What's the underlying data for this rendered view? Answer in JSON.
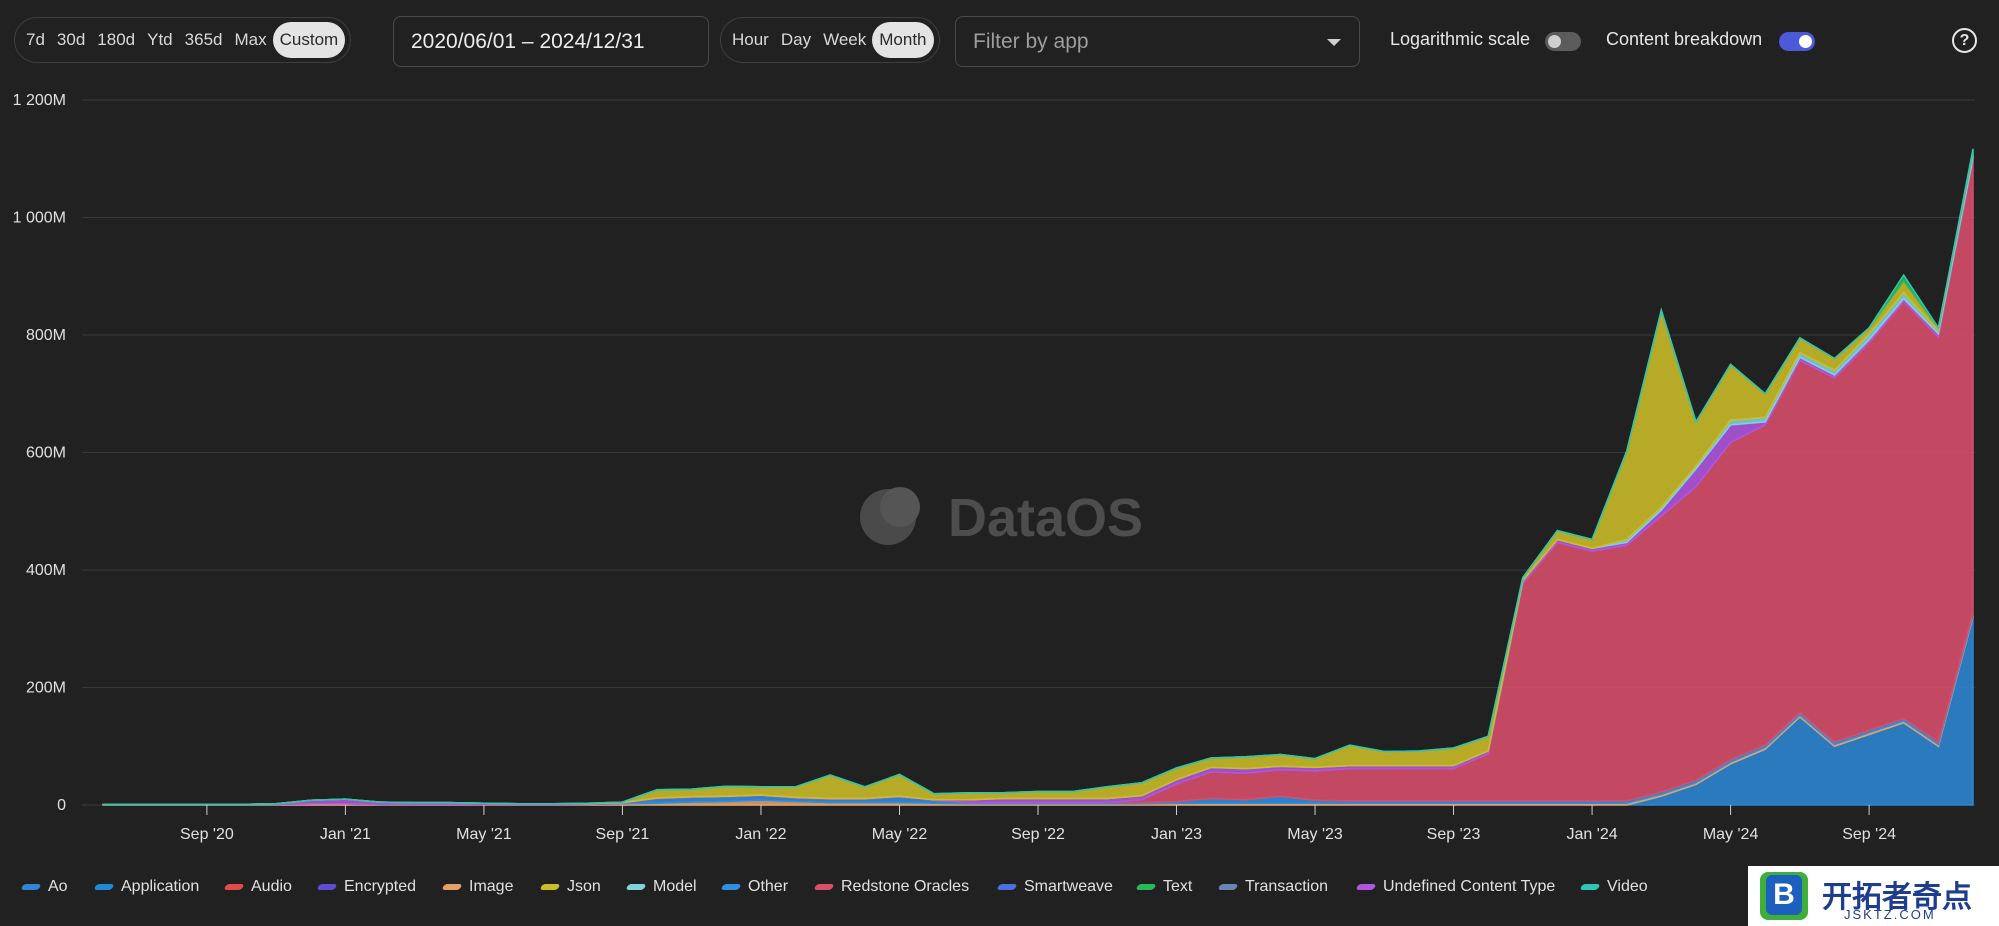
{
  "range_buttons": [
    "7d",
    "30d",
    "180d",
    "Ytd",
    "365d",
    "Max",
    "Custom"
  ],
  "range_active": "Custom",
  "date_range": "2020/06/01 – 2024/12/31",
  "interval_buttons": [
    "Hour",
    "Day",
    "Week",
    "Month"
  ],
  "interval_active": "Month",
  "filter": {
    "placeholder": "Filter by app"
  },
  "toggles": {
    "log_scale": {
      "label": "Logarithmic scale",
      "on": false
    },
    "content_breakdown": {
      "label": "Content breakdown",
      "on": true
    }
  },
  "help_icon": "question-circle-icon",
  "watermark": "DataOS",
  "badge": {
    "title": "开拓者奇点",
    "subtitle": "JSKTZ.COM"
  },
  "colors": {
    "background": "#212121",
    "grid": "#3a3a3a",
    "toggle_on": "#4c59d8"
  },
  "chart_data": {
    "type": "area",
    "stacked": true,
    "ylim": [
      0,
      1200
    ],
    "y_unit": "M",
    "yticks": [
      "0",
      "200M",
      "400M",
      "600M",
      "800M",
      "1 000M",
      "1 200M"
    ],
    "x_tick_labels": [
      "Sep '20",
      "Jan '21",
      "May '21",
      "Sep '21",
      "Jan '22",
      "May '22",
      "Sep '22",
      "Jan '23",
      "May '23",
      "Sep '23",
      "Jan '24",
      "May '24",
      "Sep '24"
    ],
    "x": [
      "2020-06",
      "2020-07",
      "2020-08",
      "2020-09",
      "2020-10",
      "2020-11",
      "2020-12",
      "2021-01",
      "2021-02",
      "2021-03",
      "2021-04",
      "2021-05",
      "2021-06",
      "2021-07",
      "2021-08",
      "2021-09",
      "2021-10",
      "2021-11",
      "2021-12",
      "2022-01",
      "2022-02",
      "2022-03",
      "2022-04",
      "2022-05",
      "2022-06",
      "2022-07",
      "2022-08",
      "2022-09",
      "2022-10",
      "2022-11",
      "2022-12",
      "2023-01",
      "2023-02",
      "2023-03",
      "2023-04",
      "2023-05",
      "2023-06",
      "2023-07",
      "2023-08",
      "2023-09",
      "2023-10",
      "2023-11",
      "2023-12",
      "2024-01",
      "2024-02",
      "2024-03",
      "2024-04",
      "2024-05",
      "2024-06",
      "2024-07",
      "2024-08",
      "2024-09",
      "2024-10",
      "2024-11",
      "2024-12"
    ],
    "series": [
      {
        "name": "Ao",
        "color": "#2e86d4",
        "values": [
          0,
          0,
          0,
          0,
          0,
          0,
          0,
          0,
          0,
          0,
          0,
          0,
          0,
          0,
          0,
          0,
          0,
          0,
          0,
          0,
          0,
          0,
          0,
          0,
          0,
          0,
          0,
          0,
          0,
          0,
          0,
          0,
          0,
          0,
          0,
          0,
          0,
          0,
          0,
          0,
          0,
          0,
          0,
          0,
          0,
          15,
          35,
          70,
          95,
          150,
          100,
          120,
          140,
          100,
          320
        ]
      },
      {
        "name": "Application",
        "color": "#1f8bd8",
        "values": [
          0,
          0,
          0,
          0,
          0,
          0,
          0,
          0,
          0,
          0,
          0,
          0,
          0,
          0,
          0,
          0,
          0,
          0,
          0,
          0,
          0,
          0,
          0,
          0,
          0,
          0,
          0,
          0,
          0,
          0,
          0,
          0,
          0,
          0,
          0,
          0,
          0,
          0,
          0,
          0,
          0,
          0,
          0,
          0,
          0,
          0,
          0,
          0,
          0,
          0,
          0,
          0,
          0,
          0,
          0
        ]
      },
      {
        "name": "Audio",
        "color": "#e04b4b",
        "values": [
          0,
          0,
          0,
          0,
          0,
          0,
          0,
          0,
          0,
          0,
          0,
          0,
          0,
          0,
          0,
          0,
          0,
          0,
          0,
          0,
          0,
          0,
          0,
          0,
          0,
          0,
          0,
          0,
          0,
          0,
          0,
          0,
          0,
          0,
          0,
          0,
          0,
          0,
          0,
          0,
          0,
          0,
          0,
          0,
          0,
          0,
          0,
          0,
          0,
          0,
          0,
          0,
          0,
          0,
          0
        ]
      },
      {
        "name": "Encrypted",
        "color": "#5a4fd1",
        "values": [
          0,
          0,
          0,
          0,
          0,
          0,
          0,
          0,
          0,
          0,
          0,
          0,
          0,
          0,
          0,
          0,
          0,
          0,
          0,
          0,
          0,
          0,
          0,
          0,
          0,
          0,
          0,
          0,
          0,
          0,
          0,
          0,
          0,
          0,
          0,
          0,
          0,
          0,
          0,
          0,
          0,
          0,
          0,
          0,
          0,
          0,
          0,
          0,
          0,
          0,
          0,
          0,
          0,
          0,
          0
        ]
      },
      {
        "name": "Image",
        "color": "#e6a066",
        "values": [
          1,
          1,
          1,
          1,
          1,
          1,
          2,
          2,
          1,
          1,
          1,
          1,
          1,
          1,
          1,
          2,
          3,
          5,
          6,
          8,
          6,
          4,
          4,
          4,
          3,
          2,
          2,
          2,
          2,
          2,
          2,
          3,
          3,
          3,
          3,
          3,
          3,
          3,
          3,
          3,
          3,
          3,
          3,
          3,
          3,
          3,
          3,
          3,
          3,
          3,
          3,
          3,
          3,
          3,
          3
        ]
      },
      {
        "name": "Other",
        "color": "#2e8fe0",
        "values": [
          0,
          0,
          0,
          0,
          0,
          0,
          0,
          0,
          0,
          0,
          0,
          0,
          0,
          0,
          0,
          1,
          8,
          8,
          8,
          8,
          6,
          6,
          6,
          10,
          5,
          2,
          2,
          2,
          2,
          2,
          2,
          3,
          8,
          6,
          12,
          5,
          4,
          4,
          4,
          4,
          4,
          4,
          4,
          4,
          4,
          4,
          4,
          4,
          4,
          4,
          4,
          4,
          4,
          4,
          4
        ]
      },
      {
        "name": "Redstone Oracles",
        "color": "#d94f6b",
        "values": [
          0,
          0,
          0,
          0,
          0,
          0,
          0,
          0,
          0,
          0,
          0,
          0,
          0,
          0,
          0,
          0,
          0,
          0,
          0,
          0,
          0,
          0,
          0,
          0,
          0,
          0,
          0,
          0,
          0,
          0,
          5,
          30,
          45,
          45,
          45,
          50,
          55,
          55,
          55,
          55,
          80,
          370,
          440,
          425,
          435,
          470,
          500,
          540,
          545,
          600,
          620,
          660,
          710,
          690,
          770
        ]
      },
      {
        "name": "Smartweave",
        "color": "#4a6fe0",
        "values": [
          0,
          0,
          0,
          0,
          0,
          0,
          0,
          0,
          0,
          0,
          0,
          0,
          0,
          0,
          0,
          0,
          0,
          0,
          0,
          0,
          0,
          0,
          0,
          0,
          0,
          0,
          0,
          0,
          0,
          0,
          0,
          0,
          0,
          0,
          0,
          0,
          0,
          0,
          0,
          0,
          0,
          0,
          0,
          0,
          0,
          0,
          0,
          0,
          0,
          0,
          0,
          0,
          0,
          0,
          0
        ]
      },
      {
        "name": "Undefined Content Type",
        "color": "#b155e0",
        "values": [
          0,
          0,
          0,
          0,
          0,
          1,
          6,
          8,
          4,
          3,
          3,
          2,
          1,
          1,
          1,
          1,
          1,
          1,
          1,
          1,
          1,
          1,
          1,
          1,
          1,
          5,
          7,
          7,
          7,
          7,
          7,
          7,
          8,
          8,
          6,
          6,
          5,
          5,
          5,
          5,
          5,
          5,
          5,
          5,
          5,
          10,
          30,
          30,
          5,
          5,
          5,
          5,
          5,
          5,
          5
        ]
      },
      {
        "name": "Model",
        "color": "#7fd3d9",
        "values": [
          0,
          0,
          0,
          0,
          0,
          0,
          0,
          0,
          0,
          0,
          0,
          0,
          0,
          0,
          0,
          0,
          0,
          0,
          0,
          0,
          0,
          0,
          0,
          0,
          0,
          0,
          0,
          0,
          0,
          0,
          0,
          0,
          0,
          0,
          0,
          0,
          0,
          0,
          0,
          0,
          0,
          0,
          0,
          0,
          5,
          5,
          5,
          8,
          8,
          8,
          8,
          10,
          10,
          5,
          5
        ]
      },
      {
        "name": "Json",
        "color": "#cbbd28",
        "values": [
          0,
          0,
          0,
          0,
          0,
          0,
          0,
          0,
          0,
          0,
          0,
          0,
          0,
          0,
          1,
          1,
          14,
          13,
          17,
          14,
          18,
          40,
          20,
          37,
          10,
          12,
          10,
          12,
          12,
          20,
          22,
          20,
          16,
          20,
          20,
          15,
          35,
          24,
          25,
          30,
          25,
          5,
          15,
          15,
          150,
          335,
          75,
          95,
          40,
          25,
          20,
          10,
          20,
          5,
          5
        ]
      },
      {
        "name": "Text",
        "color": "#28b85a",
        "values": [
          0,
          0,
          0,
          0,
          0,
          0,
          0,
          0,
          0,
          0,
          0,
          0,
          0,
          0,
          0,
          0,
          0,
          0,
          0,
          0,
          0,
          0,
          0,
          0,
          0,
          0,
          0,
          0,
          0,
          0,
          0,
          0,
          0,
          0,
          0,
          0,
          0,
          0,
          0,
          0,
          0,
          0,
          0,
          0,
          0,
          0,
          0,
          0,
          0,
          0,
          0,
          0,
          10,
          0,
          0
        ]
      },
      {
        "name": "Transaction",
        "color": "#6b84b8",
        "values": [
          0,
          0,
          0,
          0,
          0,
          0,
          0,
          0,
          0,
          0,
          0,
          0,
          0,
          0,
          0,
          0,
          0,
          0,
          0,
          0,
          0,
          0,
          0,
          0,
          0,
          0,
          0,
          0,
          0,
          0,
          0,
          0,
          0,
          0,
          0,
          0,
          0,
          0,
          0,
          0,
          0,
          0,
          0,
          0,
          0,
          0,
          0,
          0,
          0,
          0,
          0,
          0,
          0,
          0,
          0
        ]
      },
      {
        "name": "Video",
        "color": "#2ec4b6",
        "values": [
          0,
          0,
          0,
          0,
          0,
          0,
          0,
          0,
          0,
          0,
          0,
          0,
          0,
          0,
          0,
          0,
          0,
          0,
          0,
          0,
          0,
          0,
          0,
          0,
          0,
          0,
          0,
          0,
          0,
          0,
          0,
          0,
          0,
          0,
          0,
          0,
          0,
          0,
          0,
          0,
          0,
          0,
          0,
          0,
          0,
          0,
          0,
          0,
          0,
          0,
          0,
          0,
          0,
          0,
          5
        ]
      }
    ],
    "legend": [
      {
        "name": "Ao",
        "color": "#2e86d4"
      },
      {
        "name": "Application",
        "color": "#1f8bd8"
      },
      {
        "name": "Audio",
        "color": "#e04b4b"
      },
      {
        "name": "Encrypted",
        "color": "#5a4fd1"
      },
      {
        "name": "Image",
        "color": "#e6a066"
      },
      {
        "name": "Json",
        "color": "#cbbd28"
      },
      {
        "name": "Model",
        "color": "#7fd3d9"
      },
      {
        "name": "Other",
        "color": "#2e8fe0"
      },
      {
        "name": "Redstone Oracles",
        "color": "#d94f6b"
      },
      {
        "name": "Smartweave",
        "color": "#4a6fe0"
      },
      {
        "name": "Text",
        "color": "#28b85a"
      },
      {
        "name": "Transaction",
        "color": "#6b84b8"
      },
      {
        "name": "Undefined Content Type",
        "color": "#b155e0"
      },
      {
        "name": "Video",
        "color": "#2ec4b6"
      }
    ],
    "legend_position": "bottom",
    "grid": true
  }
}
